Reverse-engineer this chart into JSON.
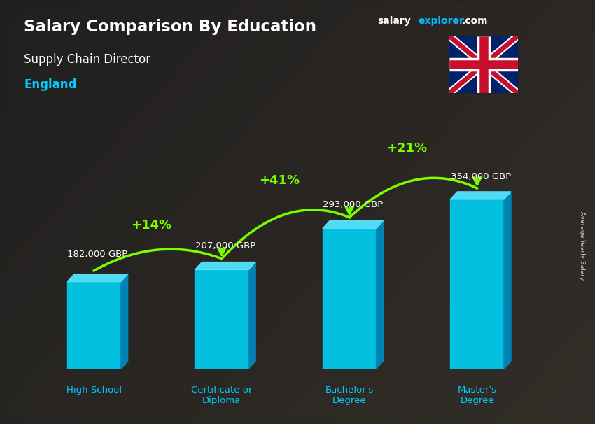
{
  "title_bold": "Salary Comparison By Education",
  "subtitle": "Supply Chain Director",
  "location": "England",
  "categories": [
    "High School",
    "Certificate or\nDiploma",
    "Bachelor's\nDegree",
    "Master's\nDegree"
  ],
  "values": [
    182000,
    207000,
    293000,
    354000
  ],
  "value_labels": [
    "182,000 GBP",
    "207,000 GBP",
    "293,000 GBP",
    "354,000 GBP"
  ],
  "pct_changes": [
    "+14%",
    "+41%",
    "+21%"
  ],
  "bar_color_front": "#00c8e8",
  "bar_color_side": "#0088bb",
  "bar_color_top": "#55e5ff",
  "background_color": "#3a4a3a",
  "title_color": "#ffffff",
  "subtitle_color": "#ffffff",
  "location_color": "#00ccff",
  "value_color": "#ffffff",
  "pct_color": "#77ff00",
  "axis_label": "Average Yearly Salary",
  "arrow_color": "#77ff00"
}
